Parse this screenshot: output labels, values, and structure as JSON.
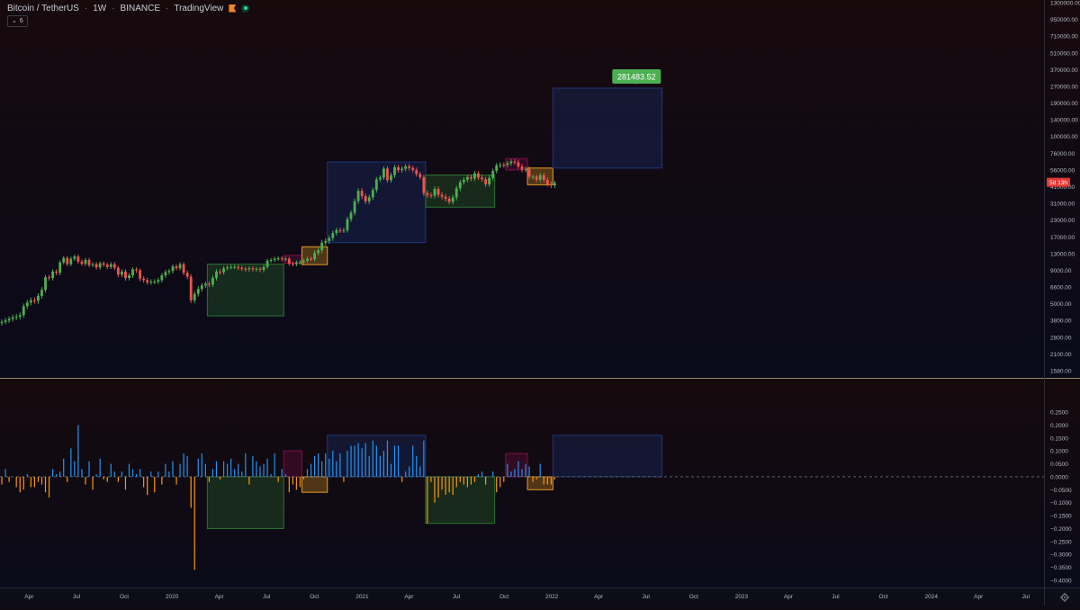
{
  "header": {
    "symbol": "Bitcoin / TetherUS",
    "interval": "1W",
    "exchange": "BINANCE",
    "source": "TradingView",
    "indicator_count": "6",
    "flag_icon": "flag-icon",
    "live_icon": "live-dot-icon"
  },
  "colors": {
    "up": "#26a69a",
    "down": "#ef5350",
    "candle_up": "#4caf50",
    "histogram_pos": "#2196f3",
    "histogram_neg": "#ff9800",
    "accumulation_box": "#2e7d32",
    "markup_box": "#1e3a8a",
    "distribution_box": "#880e4f",
    "markdown_box": "#f9a825",
    "target_label": "#4caf50"
  },
  "chart_data": [
    {
      "type": "candlestick",
      "scale": "log",
      "ylim": [
        1580,
        1300000
      ],
      "price_axis_labels": [
        "1300000.00",
        "950000.00",
        "710000.00",
        "510000.00",
        "370000.00",
        "270000.00",
        "190000.00",
        "140000.00",
        "100000.00",
        "76000.00",
        "56000.00",
        "41000.00",
        "31000.00",
        "23000.00",
        "17000.00",
        "13000.00",
        "9000.00",
        "6600.00",
        "5000.00",
        "3800.00",
        "2800.00",
        "2100.00",
        "1580.00"
      ],
      "time_axis_labels": [
        "Apr",
        "Jul",
        "Oct",
        "2020",
        "Apr",
        "Jul",
        "Oct",
        "2021",
        "Apr",
        "Jul",
        "Oct",
        "2022",
        "Apr",
        "Jul",
        "Oct",
        "2023",
        "Apr",
        "Jul",
        "Oct",
        "2024",
        "Apr",
        "Jul"
      ],
      "x_range": [
        "2019-02-04",
        "2024-08-05"
      ],
      "countdown_label": "5d 13h",
      "countdown_price": 44500,
      "target_label": "281483.52",
      "target_date": "2022-06-13",
      "target_price": 281483.52,
      "candles_close": [
        3700,
        3800,
        3900,
        4000,
        4050,
        4150,
        4800,
        5100,
        5300,
        5250,
        5700,
        6300,
        7900,
        7800,
        8800,
        8600,
        10700,
        11800,
        10300,
        11600,
        12200,
        10900,
        10400,
        11300,
        10100,
        10300,
        9600,
        10500,
        10200,
        9700,
        10300,
        9500,
        8300,
        8800,
        7800,
        8200,
        9200,
        9000,
        7700,
        7500,
        7200,
        7300,
        7300,
        7500,
        8200,
        8700,
        8900,
        9800,
        9400,
        10300,
        8600,
        8000,
        5300,
        5900,
        6400,
        6800,
        7000,
        6900,
        7800,
        8800,
        8700,
        9400,
        9600,
        9700,
        9700,
        9500,
        9300,
        9200,
        9400,
        9200,
        9300,
        9100,
        9700,
        11100,
        11300,
        11600,
        11700,
        11500,
        11600,
        10400,
        10300,
        10700,
        10800,
        11100,
        11600,
        11500,
        13100,
        13700,
        15500,
        15900,
        16700,
        18200,
        19200,
        19100,
        19200,
        23400,
        26200,
        32200,
        38200,
        35000,
        32100,
        34300,
        38800,
        47000,
        48600,
        57400,
        46300,
        50800,
        58900,
        55800,
        57200,
        59800,
        58000,
        56000,
        51800,
        49000,
        36800,
        35600,
        35300,
        39500,
        35800,
        34700,
        33500,
        31800,
        34200,
        39900,
        44600,
        46700,
        49100,
        47700,
        52600,
        48600,
        47100,
        42900,
        48200,
        55000,
        60900,
        61500,
        61300,
        63300,
        65300,
        64500,
        59700,
        56300,
        57100,
        49300,
        49400,
        46700,
        50800,
        46500,
        43100,
        42000,
        43800
      ]
    },
    {
      "type": "bar",
      "name": "oscillator",
      "ylim": [
        -0.4,
        0.25
      ],
      "axis_labels": [
        "0.2500",
        "0.2000",
        "0.1500",
        "0.1000",
        "0.0500",
        "0.0000",
        "−0.0500",
        "−0.1000",
        "−0.1500",
        "−0.2000",
        "−0.2500",
        "−0.3000",
        "−0.3500",
        "−0.4000"
      ],
      "values": [
        -0.03,
        0.03,
        -0.02,
        0.0,
        -0.04,
        -0.06,
        -0.05,
        0.01,
        -0.04,
        -0.04,
        -0.02,
        -0.03,
        -0.06,
        -0.08,
        0.03,
        0.01,
        0.02,
        0.07,
        -0.02,
        0.11,
        0.06,
        0.2,
        0.03,
        -0.03,
        0.06,
        -0.05,
        0.01,
        0.07,
        -0.01,
        -0.02,
        0.05,
        0.02,
        -0.02,
        0.02,
        -0.05,
        0.05,
        0.03,
        0.01,
        0.03,
        -0.04,
        -0.07,
        0.02,
        -0.06,
        0.02,
        -0.03,
        0.05,
        0.02,
        0.06,
        -0.03,
        0.05,
        0.09,
        0.08,
        -0.12,
        -0.36,
        0.07,
        0.09,
        0.05,
        -0.02,
        0.03,
        0.06,
        -0.01,
        0.06,
        0.05,
        0.07,
        0.03,
        0.05,
        0.02,
        0.09,
        -0.03,
        0.08,
        0.06,
        0.04,
        0.05,
        0.07,
        0.01,
        0.09,
        -0.02,
        0.03,
        0.01,
        -0.06,
        -0.03,
        -0.05,
        -0.04,
        -0.01,
        0.03,
        0.05,
        0.08,
        0.09,
        0.06,
        0.09,
        0.07,
        0.1,
        0.06,
        0.09,
        -0.02,
        0.1,
        0.12,
        0.12,
        0.13,
        0.11,
        0.13,
        0.08,
        0.14,
        0.12,
        0.08,
        0.1,
        0.14,
        0.05,
        0.12,
        0.12,
        -0.02,
        0.02,
        0.04,
        0.12,
        0.08,
        0.04,
        0.14,
        -0.18,
        -0.02,
        -0.1,
        -0.08,
        -0.05,
        -0.07,
        -0.06,
        -0.07,
        -0.04,
        -0.02,
        -0.03,
        -0.04,
        -0.03,
        -0.02,
        0.01,
        0.02,
        -0.03,
        0.0,
        0.02,
        -0.06,
        -0.04,
        -0.02,
        0.05,
        0.02,
        0.03,
        0.06,
        0.03,
        0.05,
        0.04,
        -0.02,
        -0.01,
        0.05,
        -0.03,
        -0.03,
        -0.03,
        -0.01
      ],
      "zero_line": 0.0
    }
  ],
  "boxes": [
    {
      "name": "accumulation-box-2020",
      "color": "#2e7d32",
      "from": "2020-03-09",
      "to": "2020-08-03",
      "price_top": 10300,
      "price_bottom": 4100,
      "osc_top": 0.0,
      "osc_bottom": -0.2
    },
    {
      "name": "distribution-box-2020",
      "color": "#880e4f",
      "from": "2020-08-03",
      "to": "2020-09-07",
      "price_top": 12500,
      "price_bottom": 10500,
      "osc_top": 0.1,
      "osc_bottom": 0.0
    },
    {
      "name": "markdown-box-2020",
      "color": "#f9a825",
      "from": "2020-09-07",
      "to": "2020-10-26",
      "price_top": 14500,
      "price_bottom": 10200,
      "osc_top": 0.0,
      "osc_bottom": -0.06
    },
    {
      "name": "markup-box-2021",
      "color": "#1e3a8a",
      "from": "2020-10-26",
      "to": "2021-05-03",
      "price_top": 64800,
      "price_bottom": 15500,
      "osc_top": 0.16,
      "osc_bottom": 0.0
    },
    {
      "name": "accumulation-box-2021",
      "color": "#2e7d32",
      "from": "2021-05-03",
      "to": "2021-09-13",
      "price_top": 51000,
      "price_bottom": 29000,
      "osc_top": 0.0,
      "osc_bottom": -0.18
    },
    {
      "name": "distribution-box-2021",
      "color": "#880e4f",
      "from": "2021-10-04",
      "to": "2021-11-15",
      "price_top": 69000,
      "price_bottom": 56000,
      "osc_top": 0.09,
      "osc_bottom": 0.0
    },
    {
      "name": "markdown-box-2021",
      "color": "#f9a825",
      "from": "2021-11-15",
      "to": "2022-01-03",
      "price_top": 58000,
      "price_bottom": 42500,
      "osc_top": 0.0,
      "osc_bottom": -0.05
    },
    {
      "name": "projection-box-2022",
      "color": "#1e3a8a",
      "from": "2022-01-03",
      "to": "2022-08-01",
      "price_top": 260000,
      "price_bottom": 58000,
      "osc_top": 0.16,
      "osc_bottom": 0.0
    }
  ]
}
